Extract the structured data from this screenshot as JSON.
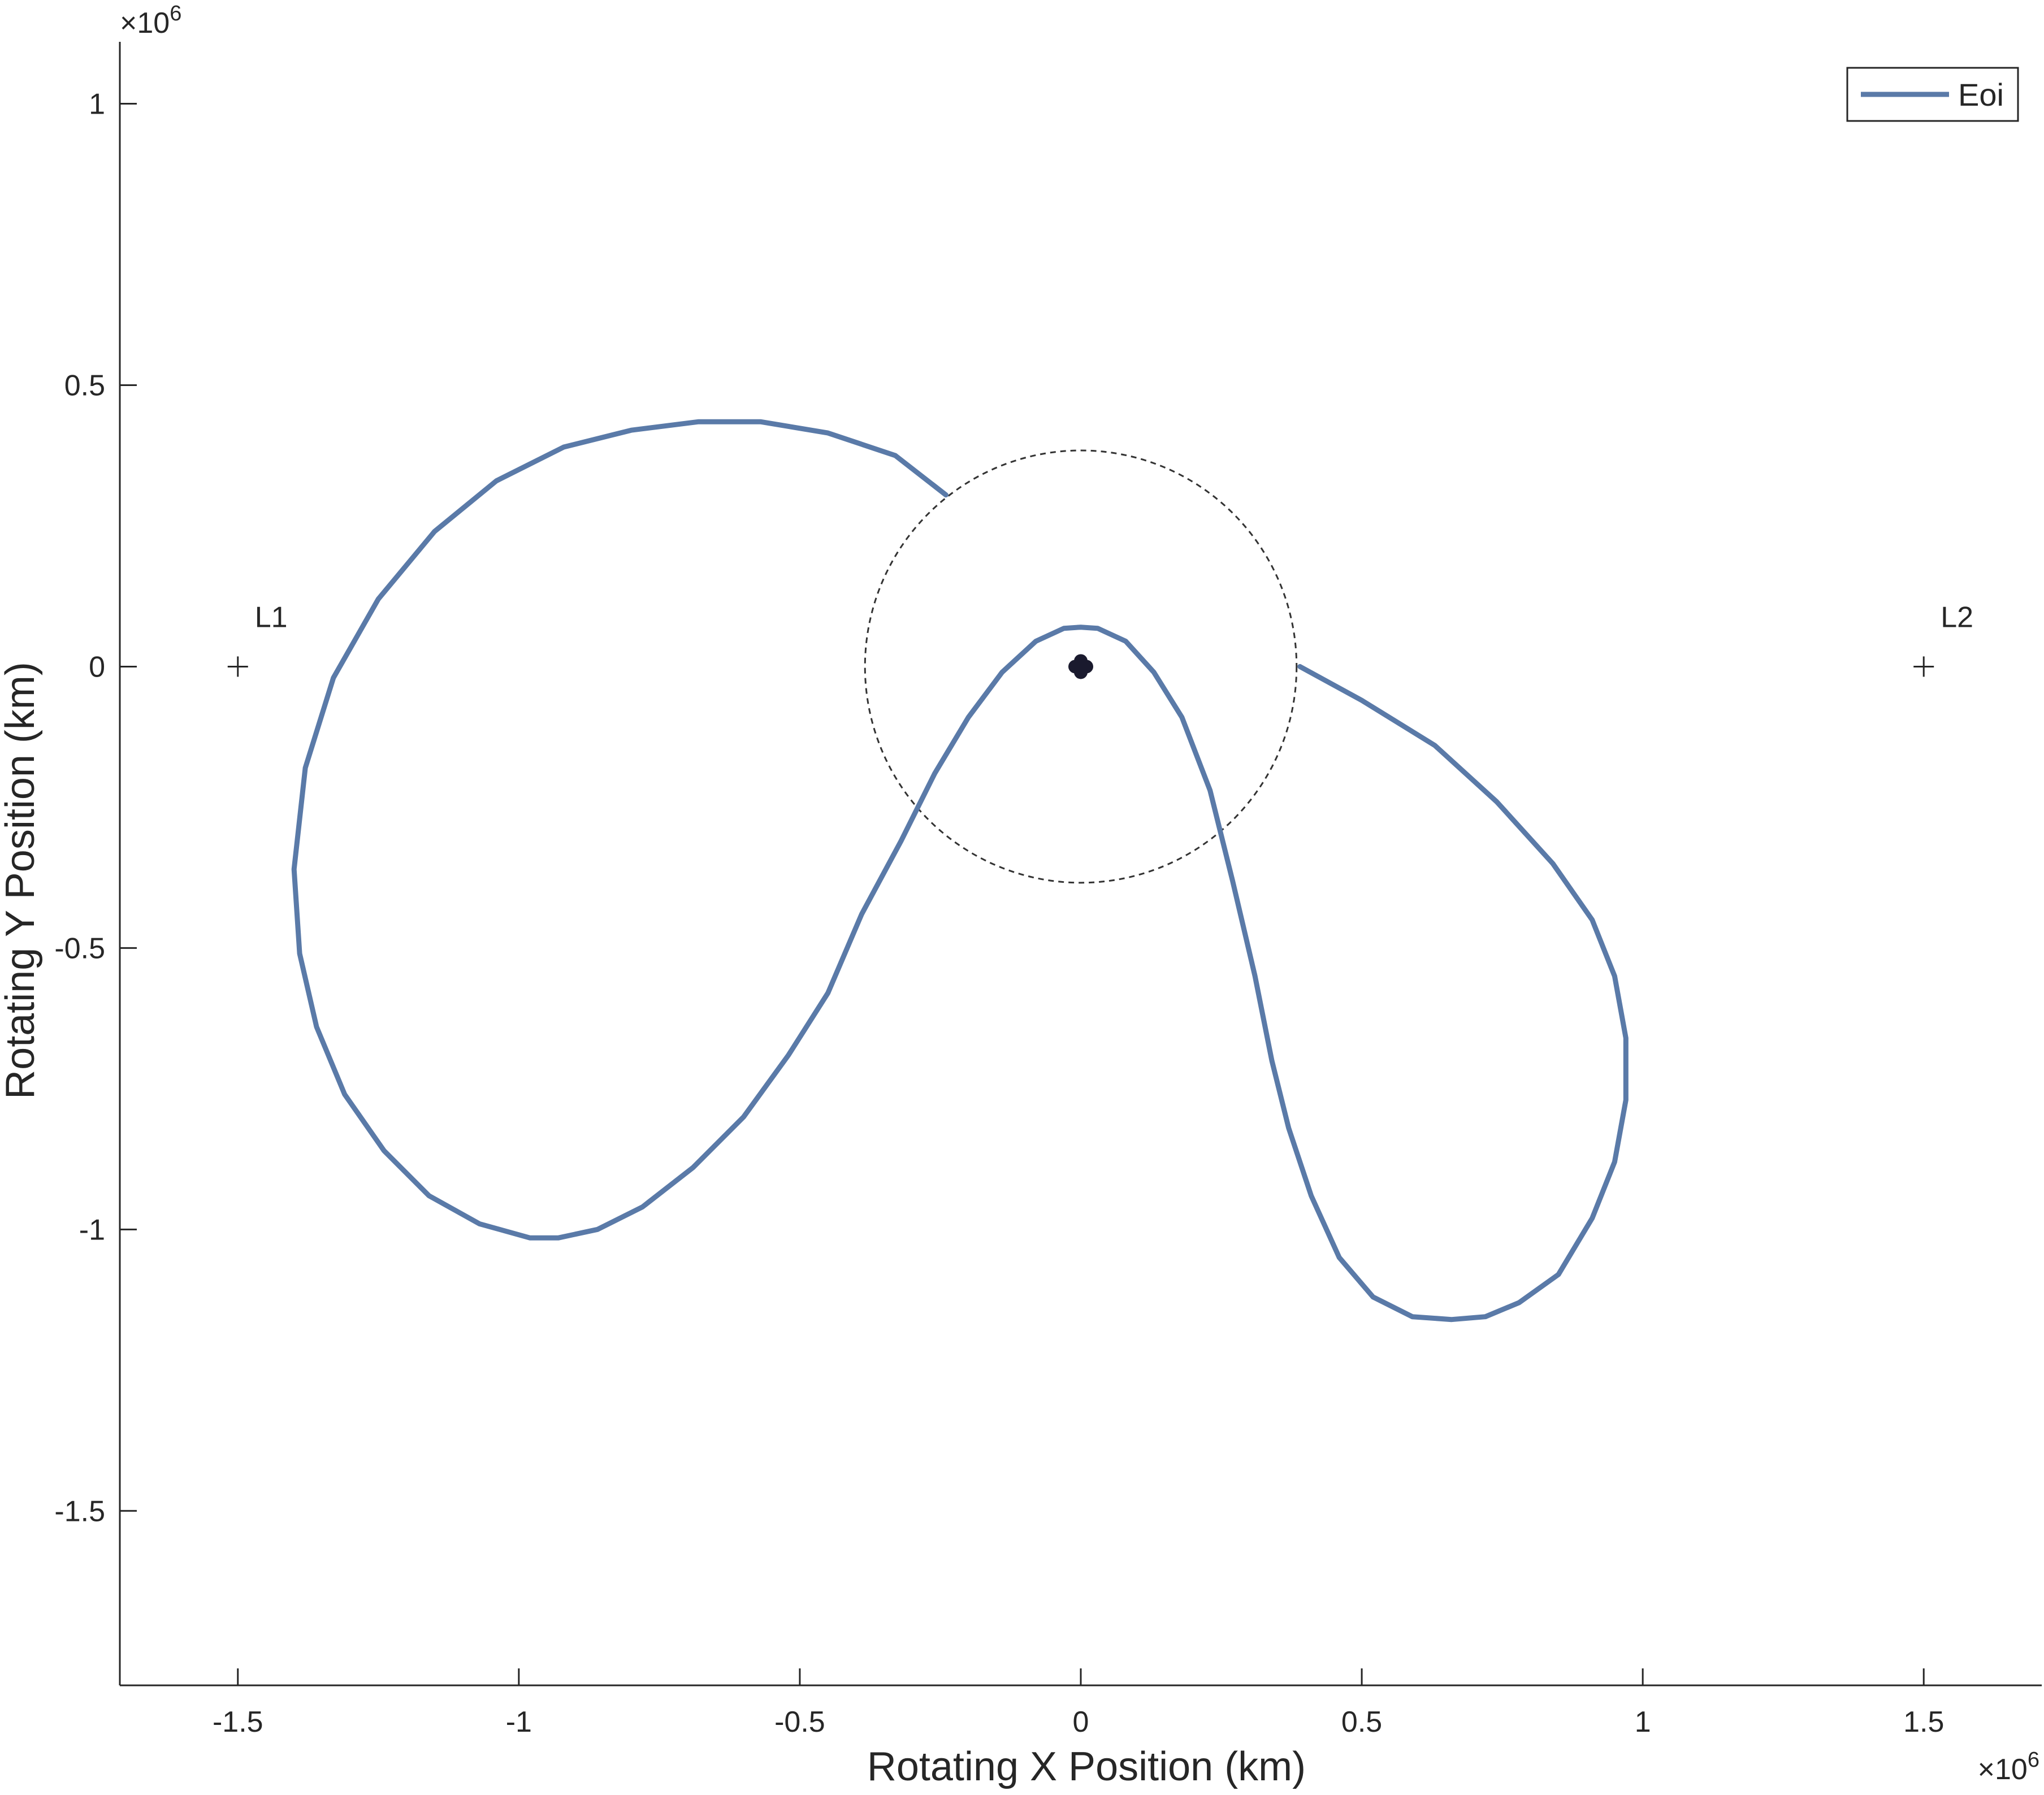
{
  "chart_data": {
    "type": "line",
    "title": "",
    "xlabel": "Rotating X Position (km)",
    "ylabel": "Rotating Y Position (km)",
    "x_exponent_label": "×10",
    "x_exponent": "6",
    "y_exponent_label": "×10",
    "y_exponent": "6",
    "xlim": [
      -1.71,
      1.71
    ],
    "ylim": [
      -1.81,
      1.11
    ],
    "value_scale": 1000000,
    "x_ticks": [
      -1.5,
      -1,
      -0.5,
      0,
      0.5,
      1,
      1.5
    ],
    "x_tick_labels": [
      "-1.5",
      "-1",
      "-0.5",
      "0",
      "0.5",
      "1",
      "1.5"
    ],
    "y_ticks": [
      -1.5,
      -1,
      -0.5,
      0,
      0.5,
      1
    ],
    "y_tick_labels": [
      "-1.5",
      "-1",
      "-0.5",
      "0",
      "0.5",
      "1"
    ],
    "grid": false,
    "legend_position": "top-right",
    "colors": {
      "trajectory": "#5a7aa8",
      "axis": "#262626",
      "circle": "#333333",
      "earth": "#1a1a2e"
    },
    "series": [
      {
        "name": "Eoi",
        "x": [
          -0.24,
          -0.33,
          -0.45,
          -0.57,
          -0.68,
          -0.8,
          -0.92,
          -1.04,
          -1.15,
          -1.25,
          -1.33,
          -1.38,
          -1.4,
          -1.39,
          -1.36,
          -1.31,
          -1.24,
          -1.16,
          -1.07,
          -0.98,
          -0.93,
          -0.86,
          -0.78,
          -0.69,
          -0.6,
          -0.52,
          -0.45,
          -0.39,
          -0.32,
          -0.26,
          -0.2,
          -0.14,
          -0.08,
          -0.03,
          0.0,
          0.03,
          0.08,
          0.13,
          0.18,
          0.23,
          0.27,
          0.31,
          0.34,
          0.37,
          0.41,
          0.46,
          0.52,
          0.59,
          0.66,
          0.72,
          0.78,
          0.85,
          0.91,
          0.95,
          0.97,
          0.97,
          0.95,
          0.91,
          0.84,
          0.74,
          0.63,
          0.5,
          0.39
        ],
        "y": [
          0.305,
          0.375,
          0.415,
          0.435,
          0.435,
          0.42,
          0.39,
          0.33,
          0.24,
          0.12,
          -0.02,
          -0.18,
          -0.36,
          -0.51,
          -0.64,
          -0.76,
          -0.86,
          -0.94,
          -0.99,
          -1.015,
          -1.015,
          -1.0,
          -0.96,
          -0.89,
          -0.8,
          -0.69,
          -0.58,
          -0.44,
          -0.31,
          -0.19,
          -0.09,
          -0.01,
          0.045,
          0.068,
          0.07,
          0.068,
          0.045,
          -0.01,
          -0.09,
          -0.22,
          -0.38,
          -0.55,
          -0.7,
          -0.82,
          -0.94,
          -1.05,
          -1.12,
          -1.155,
          -1.16,
          -1.155,
          -1.13,
          -1.08,
          -0.98,
          -0.88,
          -0.77,
          -0.66,
          -0.55,
          -0.45,
          -0.35,
          -0.24,
          -0.14,
          -0.06,
          0.0
        ]
      }
    ],
    "reference_circle": {
      "center": [
        0,
        0
      ],
      "radius": 0.384,
      "style": "dashed"
    },
    "earth_marker": {
      "x": 0,
      "y": 0
    },
    "points": [
      {
        "label": "L1",
        "x": -1.5,
        "y": 0
      },
      {
        "label": "L2",
        "x": 1.5,
        "y": 0
      }
    ]
  }
}
